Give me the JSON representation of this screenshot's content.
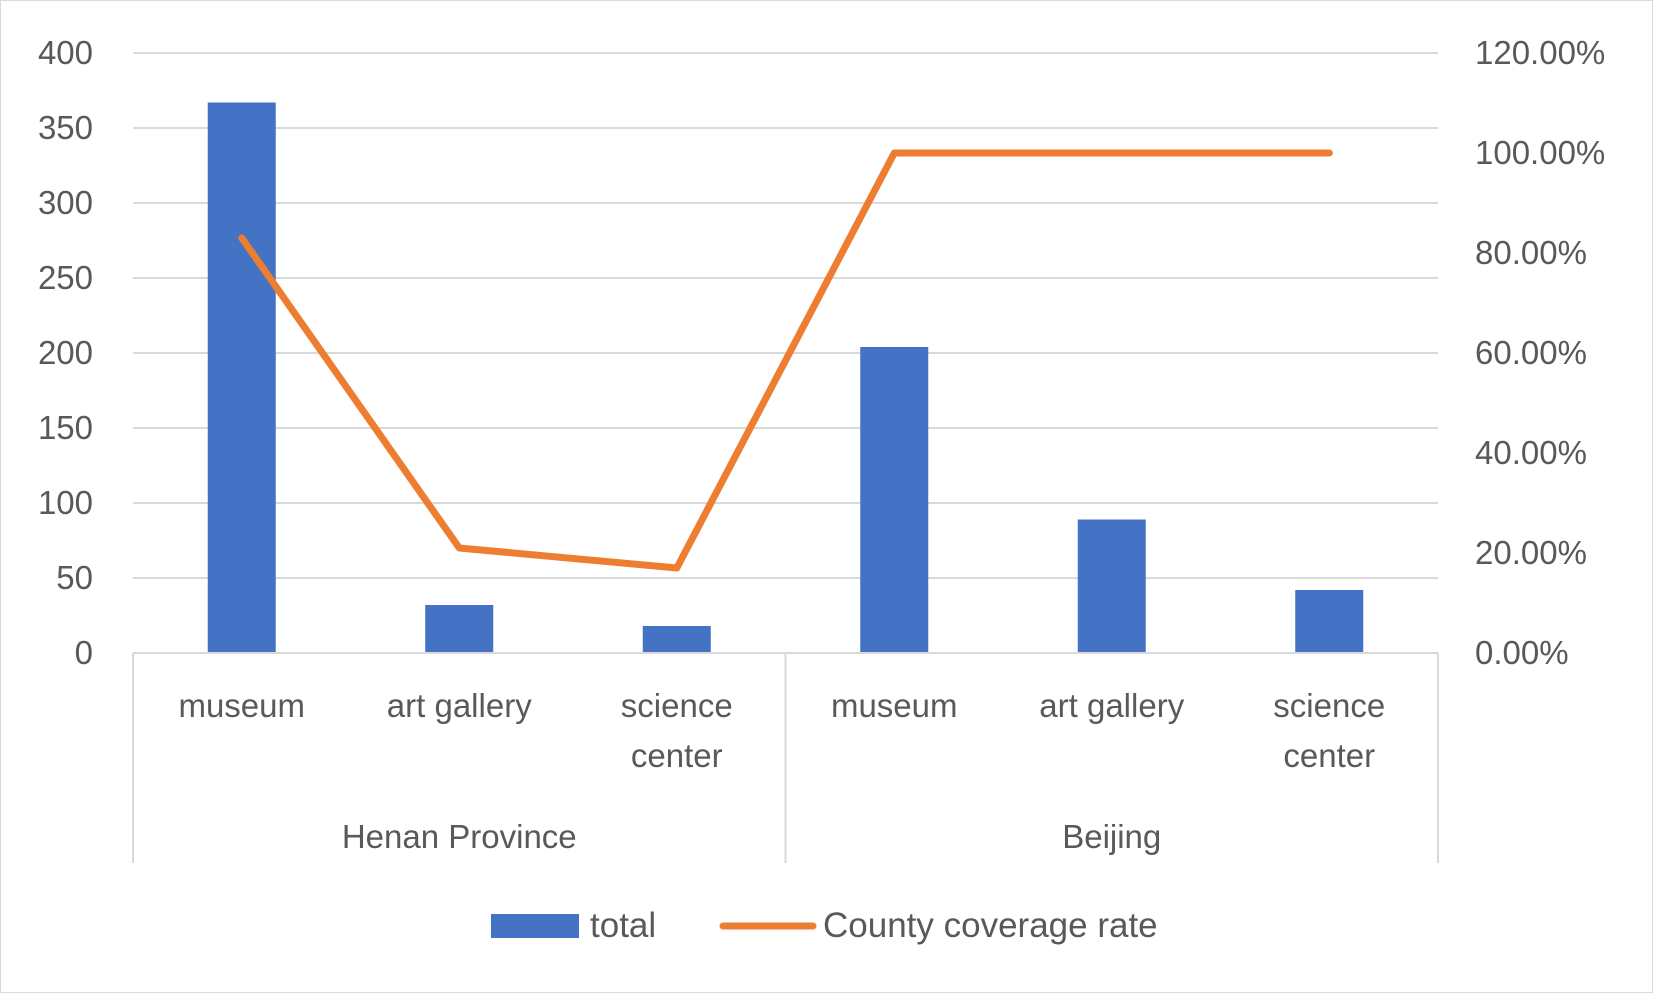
{
  "chart_data": {
    "type": "bar",
    "groups": [
      {
        "label": "Henan Province",
        "categories": [
          "museum",
          "art gallery",
          "science center"
        ]
      },
      {
        "label": "Beijing",
        "categories": [
          "museum",
          "art gallery",
          "science center"
        ]
      }
    ],
    "category_lines": [
      [
        "museum"
      ],
      [
        "art gallery"
      ],
      [
        "science",
        "center"
      ],
      [
        "museum"
      ],
      [
        "art gallery"
      ],
      [
        "science",
        "center"
      ]
    ],
    "series": [
      {
        "name": "total",
        "type": "bar",
        "axis": "left",
        "color": "#4472c4",
        "values": [
          367,
          32,
          18,
          204,
          89,
          42
        ]
      },
      {
        "name": "County coverage rate",
        "type": "line",
        "axis": "right",
        "color": "#ed7d31",
        "values": [
          0.83,
          0.21,
          0.17,
          1.0,
          1.0,
          1.0
        ]
      }
    ],
    "y_left": {
      "min": 0,
      "max": 400,
      "ticks": [
        0,
        50,
        100,
        150,
        200,
        250,
        300,
        350,
        400
      ],
      "tick_labels": [
        "0",
        "50",
        "100",
        "150",
        "200",
        "250",
        "300",
        "350",
        "400"
      ]
    },
    "y_right": {
      "min": 0,
      "max": 1.2,
      "ticks": [
        0,
        0.2,
        0.4,
        0.6,
        0.8,
        1.0,
        1.2
      ],
      "tick_labels": [
        "0.00%",
        "20.00%",
        "40.00%",
        "60.00%",
        "80.00%",
        "100.00%",
        "120.00%"
      ]
    },
    "grid": true,
    "legend_position": "bottom"
  }
}
